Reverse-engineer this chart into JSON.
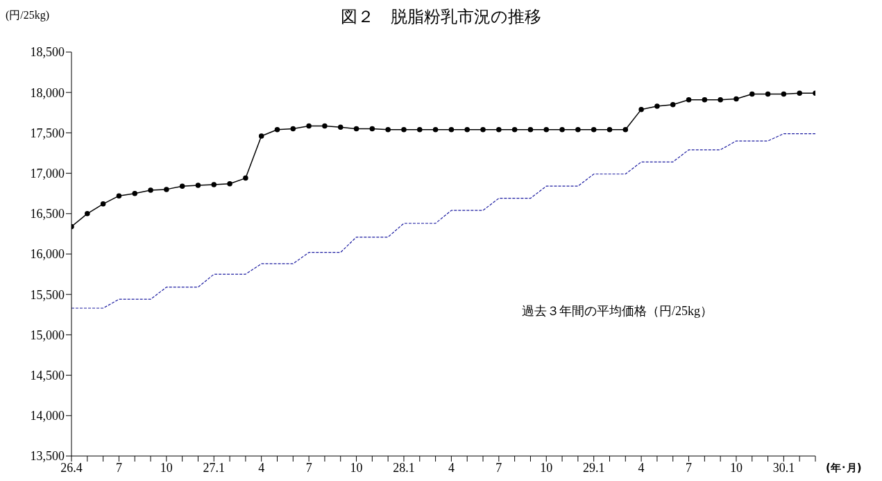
{
  "chart_data": {
    "type": "line",
    "title": "図２　脱脂粉乳市況の推移",
    "ylabel": "(円/25kg)",
    "xlabel": "(年･月)",
    "categories": [
      "26.4",
      null,
      null,
      "7",
      null,
      null,
      "10",
      null,
      null,
      "27.1",
      null,
      null,
      "4",
      null,
      null,
      "7",
      null,
      null,
      "10",
      null,
      null,
      "28.1",
      null,
      null,
      "4",
      null,
      null,
      "7",
      null,
      null,
      "10",
      null,
      null,
      "29.1",
      null,
      null,
      "4",
      null,
      null,
      "7",
      null,
      null,
      "10",
      null,
      null,
      "30.1",
      null,
      null
    ],
    "series": [
      {
        "color": "#000000",
        "marker": "circle",
        "line_style": "solid",
        "values": [
          16340,
          16500,
          16620,
          16720,
          16750,
          16790,
          16800,
          16840,
          16850,
          16860,
          16870,
          16940,
          17460,
          17540,
          17550,
          17585,
          17585,
          17570,
          17550,
          17550,
          17540,
          17540,
          17540,
          17540,
          17540,
          17540,
          17540,
          17540,
          17540,
          17540,
          17540,
          17540,
          17540,
          17540,
          17540,
          17540,
          17790,
          17830,
          17850,
          17910,
          17910,
          17910,
          17920,
          17980,
          17980,
          17980,
          17990,
          17990
        ]
      },
      {
        "name": "過去３年間の平均価格（円/25kg）",
        "color": "#1a1aa0",
        "marker": "none",
        "line_style": "dashed",
        "values": [
          15330,
          15330,
          15330,
          15440,
          15440,
          15440,
          15590,
          15590,
          15590,
          15750,
          15750,
          15750,
          15880,
          15880,
          15880,
          16020,
          16020,
          16020,
          16210,
          16210,
          16210,
          16380,
          16380,
          16380,
          16540,
          16540,
          16540,
          16690,
          16690,
          16690,
          16840,
          16840,
          16840,
          16990,
          16990,
          16990,
          17140,
          17140,
          17140,
          17290,
          17290,
          17290,
          17400,
          17400,
          17400,
          17490,
          17490,
          17490
        ]
      }
    ],
    "ylim": [
      13500,
      18500
    ],
    "yticks": [
      {
        "value": 13500,
        "label": "13,500"
      },
      {
        "value": 14000,
        "label": "14,000"
      },
      {
        "value": 14500,
        "label": "14,500"
      },
      {
        "value": 15000,
        "label": "15,000"
      },
      {
        "value": 15500,
        "label": "15,500"
      },
      {
        "value": 16000,
        "label": "16,000"
      },
      {
        "value": 16500,
        "label": "16,500"
      },
      {
        "value": 17000,
        "label": "17,000"
      },
      {
        "value": 17500,
        "label": "17,500"
      },
      {
        "value": 18000,
        "label": "18,000"
      },
      {
        "value": 18500,
        "label": "18,500"
      }
    ],
    "grid": false,
    "legend": false
  }
}
